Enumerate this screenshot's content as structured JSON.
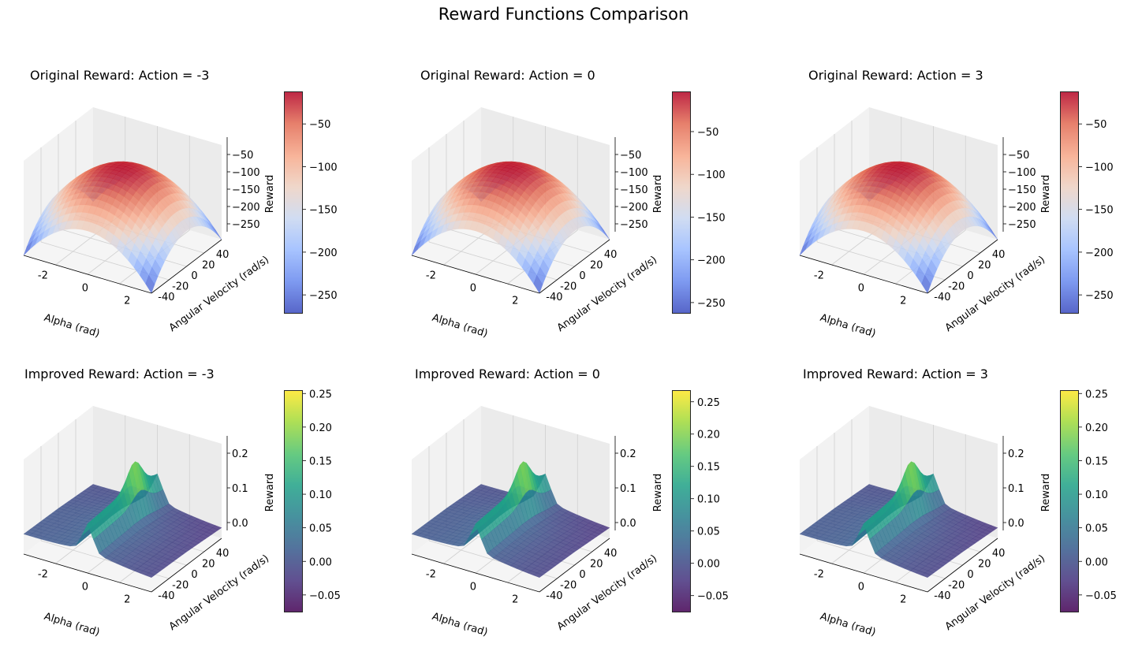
{
  "figure": {
    "title": "Reward Functions Comparison"
  },
  "colormaps": {
    "coolwarm": [
      "#3b4cc0",
      "#6788ee",
      "#9abbff",
      "#c9d7f0",
      "#edd1c2",
      "#f7a889",
      "#e26952",
      "#b40426"
    ],
    "viridis": [
      "#440154",
      "#46327e",
      "#365c8d",
      "#277f8e",
      "#1fa187",
      "#4ac16d",
      "#a0da39",
      "#fde725"
    ]
  },
  "chart_data": [
    {
      "type": "surface",
      "title": "Original Reward: Action = -3",
      "xlabel": "Alpha (rad)",
      "ylabel": "Angular Velocity (rad/s)",
      "zlabel": "Reward",
      "x_ticks": [
        "-2",
        "0",
        "2"
      ],
      "y_ticks": [
        "-40",
        "-20",
        "0",
        "20",
        "40"
      ],
      "z_ticks": [
        "-50",
        "-100",
        "-150",
        "-200",
        "-250"
      ],
      "colorbar": {
        "cmap": "coolwarm",
        "range": [
          -272,
          -12
        ],
        "ticks": [
          "-50",
          "-100",
          "-150",
          "-200",
          "-250"
        ]
      }
    },
    {
      "type": "surface",
      "title": "Original Reward: Action = 0",
      "xlabel": "Alpha (rad)",
      "ylabel": "Angular Velocity (rad/s)",
      "zlabel": "Reward",
      "x_ticks": [
        "-2",
        "0",
        "2"
      ],
      "y_ticks": [
        "-40",
        "-20",
        "0",
        "20",
        "40"
      ],
      "z_ticks": [
        "-50",
        "-100",
        "-150",
        "-200",
        "-250"
      ],
      "colorbar": {
        "cmap": "coolwarm",
        "range": [
          -263,
          -3
        ],
        "ticks": [
          "-50",
          "-100",
          "-150",
          "-200",
          "-250"
        ]
      }
    },
    {
      "type": "surface",
      "title": "Original Reward: Action = 3",
      "xlabel": "Alpha (rad)",
      "ylabel": "Angular Velocity (rad/s)",
      "zlabel": "Reward",
      "x_ticks": [
        "-2",
        "0",
        "2"
      ],
      "y_ticks": [
        "-40",
        "-20",
        "0",
        "20",
        "40"
      ],
      "z_ticks": [
        "-50",
        "-100",
        "-150",
        "-200",
        "-250"
      ],
      "colorbar": {
        "cmap": "coolwarm",
        "range": [
          -272,
          -12
        ],
        "ticks": [
          "-50",
          "-100",
          "-150",
          "-200",
          "-250"
        ]
      }
    },
    {
      "type": "surface",
      "title": "Improved Reward: Action = -3",
      "xlabel": "Alpha (rad)",
      "ylabel": "Angular Velocity (rad/s)",
      "zlabel": "Reward",
      "x_ticks": [
        "-2",
        "0",
        "2"
      ],
      "y_ticks": [
        "-40",
        "-20",
        "0",
        "20",
        "40"
      ],
      "z_ticks": [
        "0.2",
        "0.1",
        "0.0"
      ],
      "colorbar": {
        "cmap": "viridis",
        "range": [
          -0.076,
          0.255
        ],
        "ticks": [
          "0.25",
          "0.20",
          "0.15",
          "0.10",
          "0.05",
          "0.00",
          "-0.05"
        ]
      }
    },
    {
      "type": "surface",
      "title": "Improved Reward: Action = 0",
      "xlabel": "Alpha (rad)",
      "ylabel": "Angular Velocity (rad/s)",
      "zlabel": "Reward",
      "x_ticks": [
        "-2",
        "0",
        "2"
      ],
      "y_ticks": [
        "-40",
        "-20",
        "0",
        "20",
        "40"
      ],
      "z_ticks": [
        "0.2",
        "0.1",
        "0.0"
      ],
      "colorbar": {
        "cmap": "viridis",
        "range": [
          -0.076,
          0.268
        ],
        "ticks": [
          "0.25",
          "0.20",
          "0.15",
          "0.10",
          "0.05",
          "0.00",
          "-0.05"
        ]
      }
    },
    {
      "type": "surface",
      "title": "Improved Reward: Action = 3",
      "xlabel": "Alpha (rad)",
      "ylabel": "Angular Velocity (rad/s)",
      "zlabel": "Reward",
      "x_ticks": [
        "-2",
        "0",
        "2"
      ],
      "y_ticks": [
        "-40",
        "-20",
        "0",
        "20",
        "40"
      ],
      "z_ticks": [
        "0.2",
        "0.1",
        "0.0"
      ],
      "colorbar": {
        "cmap": "viridis",
        "range": [
          -0.076,
          0.255
        ],
        "ticks": [
          "0.25",
          "0.20",
          "0.15",
          "0.10",
          "0.05",
          "0.00",
          "-0.05"
        ]
      }
    }
  ]
}
